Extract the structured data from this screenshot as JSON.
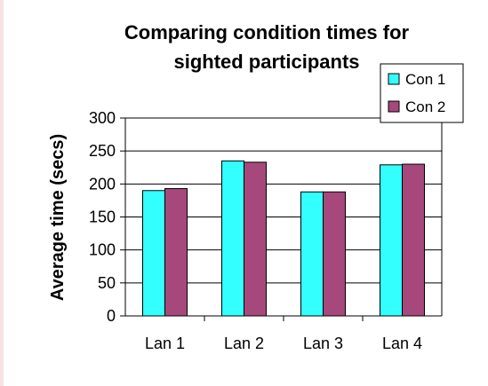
{
  "chart_data": {
    "type": "bar",
    "title": "Comparing condition times for sighted participants",
    "title_lines": [
      "Comparing condition times for",
      "sighted participants"
    ],
    "xlabel": "",
    "ylabel": "Average time (secs)",
    "categories": [
      "Lan 1",
      "Lan 2",
      "Lan 3",
      "Lan 4"
    ],
    "series": [
      {
        "name": "Con 1",
        "values": [
          190,
          235,
          188,
          229
        ],
        "color": "#33ffff"
      },
      {
        "name": "Con 2",
        "values": [
          193,
          233,
          188,
          230
        ],
        "color": "#a6487c"
      }
    ],
    "ylim": [
      0,
      300
    ],
    "yticks": [
      0,
      50,
      100,
      150,
      200,
      250,
      300
    ],
    "grid": true,
    "legend_position": "top-right",
    "plot_background": "#ffffff",
    "gridline_color": "#000000"
  }
}
